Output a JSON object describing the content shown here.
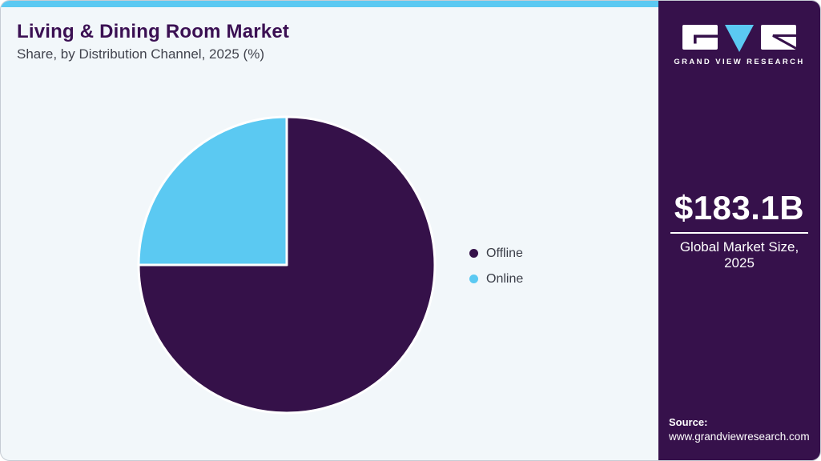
{
  "page": {
    "card_background": "#f2f7fa",
    "outer_background": "#ffffff",
    "border_color": "#c6ccd4",
    "accent_bar_color": "#5bc9f2"
  },
  "header": {
    "title": "Living & Dining Room Market",
    "subtitle": "Share, by Distribution Channel, 2025 (%)",
    "title_color": "#3b1053",
    "subtitle_color": "#41434d"
  },
  "chart_data": {
    "type": "pie",
    "title": "Living & Dining Room Market Share, by Distribution Channel, 2025 (%)",
    "categories": [
      "Offline",
      "Online"
    ],
    "values": [
      75,
      25
    ],
    "unit": "percent of market share",
    "colors": [
      "#351149",
      "#5bc9f2"
    ],
    "start_angle": "12 o'clock",
    "direction": "clockwise",
    "slice_divider_color": "#ffffff",
    "legend_position": "right",
    "legend_text_color": "#3b3e48",
    "data_labels": false
  },
  "sidebar": {
    "background": "#36114b",
    "text_color": "#ffffff",
    "logo": {
      "brand": "GRAND VIEW RESEARCH",
      "accent_color": "#5bc9f2",
      "mark_color": "#36114b"
    },
    "market_size": {
      "value": "$183.1B",
      "caption_line1": "Global Market Size,",
      "caption_line2": "2025"
    },
    "source": {
      "label": "Source:",
      "url": "www.grandviewresearch.com"
    }
  }
}
